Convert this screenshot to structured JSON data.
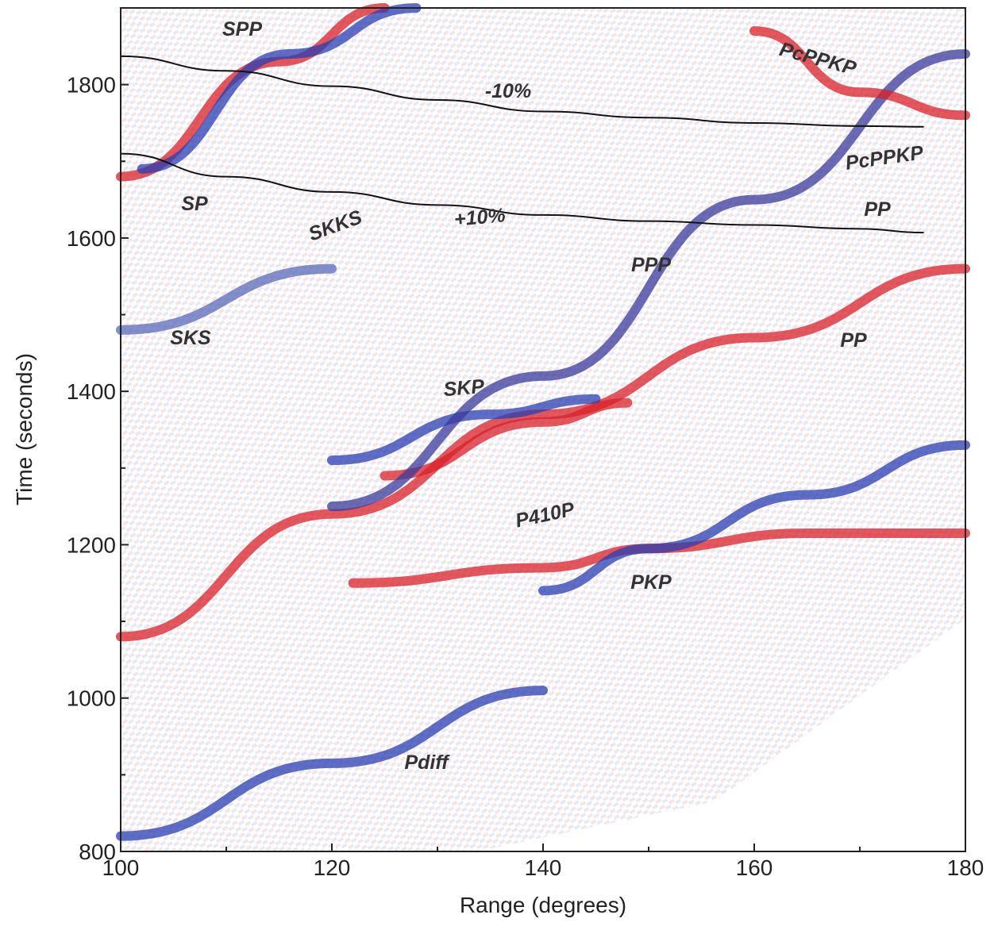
{
  "chart_data": {
    "type": "line",
    "x_label": "Range (degrees)",
    "y_label": "Time (seconds)",
    "xlim": [
      100,
      180
    ],
    "xticks": [
      100,
      120,
      140,
      160,
      180
    ],
    "xminor": [
      110,
      130,
      150,
      170
    ],
    "ylim": [
      800,
      1900
    ],
    "yticks": [
      800,
      1000,
      1200,
      1400,
      1600,
      1800
    ],
    "yminor": [
      900,
      1100,
      1300,
      1500,
      1700
    ],
    "annotations": [
      "SPP",
      "-10%",
      "PcPPKP",
      "PcPPKP",
      "SP",
      "SKKS",
      "+10%",
      "PP",
      "PPP",
      "SKS",
      "PP",
      "SKP",
      "P410P",
      "PKP",
      "Pdiff"
    ],
    "contours": [
      {
        "x": [
          100,
          110,
          120,
          130,
          140,
          150,
          160,
          170,
          176
        ],
        "values": [
          1837,
          1818,
          1798,
          1780,
          1765,
          1757,
          1750,
          1746,
          1745
        ],
        "color": "#111111"
      },
      {
        "x": [
          100,
          110,
          120,
          130,
          140,
          150,
          160,
          170,
          176
        ],
        "values": [
          1710,
          1680,
          1660,
          1643,
          1630,
          1622,
          1617,
          1612,
          1607
        ],
        "color": "#111111"
      }
    ],
    "series": [
      {
        "color": "#2a3db0",
        "x": [
          100,
          120,
          140
        ],
        "values": [
          820,
          915,
          1010
        ]
      },
      {
        "color": "#d8202a",
        "x": [
          122,
          140,
          150,
          165,
          180
        ],
        "values": [
          1150,
          1170,
          1195,
          1215,
          1215
        ]
      },
      {
        "color": "#2a3db0",
        "x": [
          140,
          150,
          165,
          180
        ],
        "values": [
          1140,
          1195,
          1265,
          1330
        ]
      },
      {
        "color": "#d8202a",
        "x": [
          100,
          120,
          140,
          160,
          180
        ],
        "values": [
          1080,
          1240,
          1370,
          1470,
          1560
        ]
      },
      {
        "color": "#2a3db0",
        "x": [
          120,
          135,
          145
        ],
        "values": [
          1310,
          1370,
          1390
        ]
      },
      {
        "color": "#d8202a",
        "x": [
          125,
          140,
          148
        ],
        "values": [
          1290,
          1360,
          1385
        ]
      },
      {
        "color": "#3a3a9a",
        "x": [
          120,
          140,
          160,
          180
        ],
        "values": [
          1250,
          1420,
          1650,
          1840
        ]
      },
      {
        "color": "#d8202a",
        "x": [
          100,
          115,
          125
        ],
        "values": [
          1680,
          1830,
          1900
        ]
      },
      {
        "color": "#2a3db0",
        "x": [
          102,
          116,
          128
        ],
        "values": [
          1690,
          1840,
          1900
        ]
      },
      {
        "color": "#5a6ab8",
        "x": [
          100,
          120
        ],
        "values": [
          1480,
          1560
        ]
      },
      {
        "color": "#d8202a",
        "x": [
          160,
          170,
          180
        ],
        "values": [
          1870,
          1790,
          1760
        ]
      }
    ]
  }
}
